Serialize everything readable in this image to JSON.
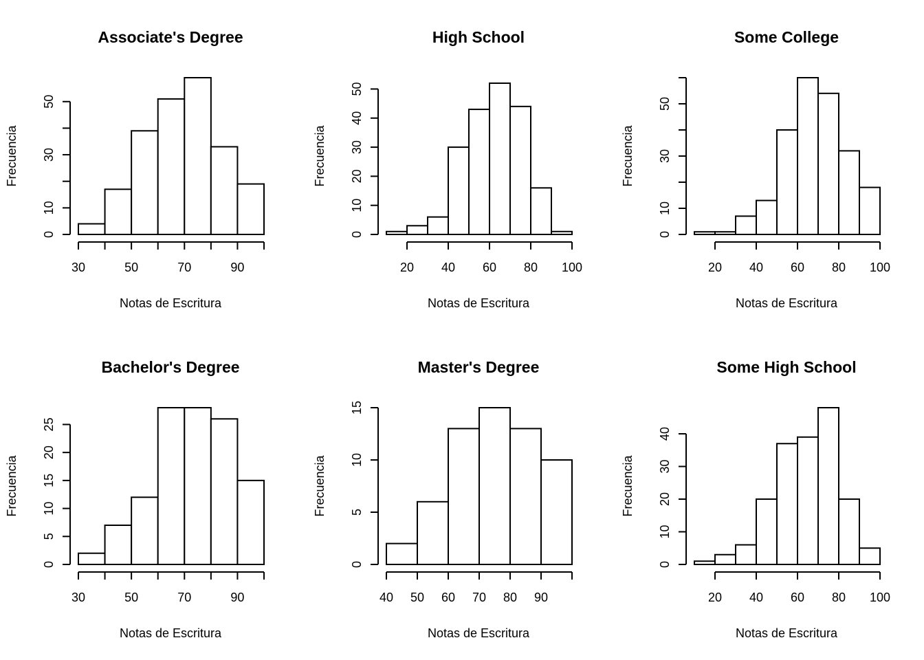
{
  "chart_data": [
    {
      "type": "bar",
      "title": "Associate's Degree",
      "xlabel": "Notas de Escritura",
      "ylabel": "Frecuencia",
      "bins": [
        [
          30,
          40
        ],
        [
          40,
          50
        ],
        [
          50,
          60
        ],
        [
          60,
          70
        ],
        [
          70,
          80
        ],
        [
          80,
          90
        ],
        [
          90,
          100
        ]
      ],
      "values": [
        4,
        17,
        39,
        51,
        59,
        33,
        19
      ],
      "xlim": [
        30,
        100
      ],
      "ylim": [
        0,
        59
      ],
      "xticks": [
        30,
        40,
        50,
        60,
        70,
        80,
        90,
        100
      ],
      "xtick_labels": [
        "30",
        "",
        "50",
        "",
        "70",
        "",
        "90",
        ""
      ],
      "yticks": [
        0,
        10,
        20,
        30,
        40,
        50
      ],
      "ytick_labels": [
        "0",
        "10",
        "",
        "30",
        "",
        "50"
      ]
    },
    {
      "type": "bar",
      "title": "High School",
      "xlabel": "Notas de Escritura",
      "ylabel": "Frecuencia",
      "bins": [
        [
          10,
          20
        ],
        [
          20,
          30
        ],
        [
          30,
          40
        ],
        [
          40,
          50
        ],
        [
          50,
          60
        ],
        [
          60,
          70
        ],
        [
          70,
          80
        ],
        [
          80,
          90
        ],
        [
          90,
          100
        ]
      ],
      "values": [
        1,
        3,
        6,
        30,
        43,
        52,
        44,
        16,
        1
      ],
      "xlim": [
        10,
        100
      ],
      "ylim": [
        0,
        52
      ],
      "xticks": [
        20,
        40,
        60,
        80,
        100
      ],
      "xtick_labels": [
        "20",
        "40",
        "60",
        "80",
        "100"
      ],
      "yticks": [
        0,
        10,
        20,
        30,
        40,
        50
      ],
      "ytick_labels": [
        "0",
        "10",
        "20",
        "30",
        "40",
        "50"
      ]
    },
    {
      "type": "bar",
      "title": "Some College",
      "xlabel": "Notas de Escritura",
      "ylabel": "Frecuencia",
      "bins": [
        [
          10,
          20
        ],
        [
          20,
          30
        ],
        [
          30,
          40
        ],
        [
          40,
          50
        ],
        [
          50,
          60
        ],
        [
          60,
          70
        ],
        [
          70,
          80
        ],
        [
          80,
          90
        ],
        [
          90,
          100
        ]
      ],
      "values": [
        1,
        1,
        7,
        13,
        40,
        60,
        54,
        32,
        18
      ],
      "xlim": [
        10,
        100
      ],
      "ylim": [
        0,
        60
      ],
      "xticks": [
        20,
        40,
        60,
        80,
        100
      ],
      "xtick_labels": [
        "20",
        "40",
        "60",
        "80",
        "100"
      ],
      "yticks": [
        0,
        10,
        20,
        30,
        40,
        50,
        60
      ],
      "ytick_labels": [
        "0",
        "10",
        "",
        "30",
        "",
        "50",
        ""
      ]
    },
    {
      "type": "bar",
      "title": "Bachelor's Degree",
      "xlabel": "Notas de Escritura",
      "ylabel": "Frecuencia",
      "bins": [
        [
          30,
          40
        ],
        [
          40,
          50
        ],
        [
          50,
          60
        ],
        [
          60,
          70
        ],
        [
          70,
          80
        ],
        [
          80,
          90
        ],
        [
          90,
          100
        ]
      ],
      "values": [
        2,
        7,
        12,
        28,
        28,
        26,
        15
      ],
      "xlim": [
        30,
        100
      ],
      "ylim": [
        0,
        28
      ],
      "xticks": [
        30,
        40,
        50,
        60,
        70,
        80,
        90,
        100
      ],
      "xtick_labels": [
        "30",
        "",
        "50",
        "",
        "70",
        "",
        "90",
        ""
      ],
      "yticks": [
        0,
        5,
        10,
        15,
        20,
        25
      ],
      "ytick_labels": [
        "0",
        "5",
        "10",
        "15",
        "20",
        "25"
      ]
    },
    {
      "type": "bar",
      "title": "Master's Degree",
      "xlabel": "Notas de Escritura",
      "ylabel": "Frecuencia",
      "bins": [
        [
          40,
          50
        ],
        [
          50,
          60
        ],
        [
          60,
          70
        ],
        [
          70,
          80
        ],
        [
          80,
          90
        ],
        [
          90,
          100
        ]
      ],
      "values": [
        2,
        6,
        13,
        15,
        13,
        10
      ],
      "xlim": [
        40,
        100
      ],
      "ylim": [
        0,
        15
      ],
      "xticks": [
        40,
        50,
        60,
        70,
        80,
        90,
        100
      ],
      "xtick_labels": [
        "40",
        "50",
        "60",
        "70",
        "80",
        "90",
        ""
      ],
      "yticks": [
        0,
        5,
        10,
        15
      ],
      "ytick_labels": [
        "0",
        "5",
        "10",
        "15"
      ]
    },
    {
      "type": "bar",
      "title": "Some High School",
      "xlabel": "Notas de Escritura",
      "ylabel": "Frecuencia",
      "bins": [
        [
          10,
          20
        ],
        [
          20,
          30
        ],
        [
          30,
          40
        ],
        [
          40,
          50
        ],
        [
          50,
          60
        ],
        [
          60,
          70
        ],
        [
          70,
          80
        ],
        [
          80,
          90
        ],
        [
          90,
          100
        ]
      ],
      "values": [
        1,
        3,
        6,
        20,
        37,
        39,
        48,
        20,
        5
      ],
      "xlim": [
        10,
        100
      ],
      "ylim": [
        0,
        48
      ],
      "xticks": [
        20,
        40,
        60,
        80,
        100
      ],
      "xtick_labels": [
        "20",
        "40",
        "60",
        "80",
        "100"
      ],
      "yticks": [
        0,
        10,
        20,
        30,
        40
      ],
      "ytick_labels": [
        "0",
        "10",
        "20",
        "30",
        "40"
      ]
    }
  ]
}
